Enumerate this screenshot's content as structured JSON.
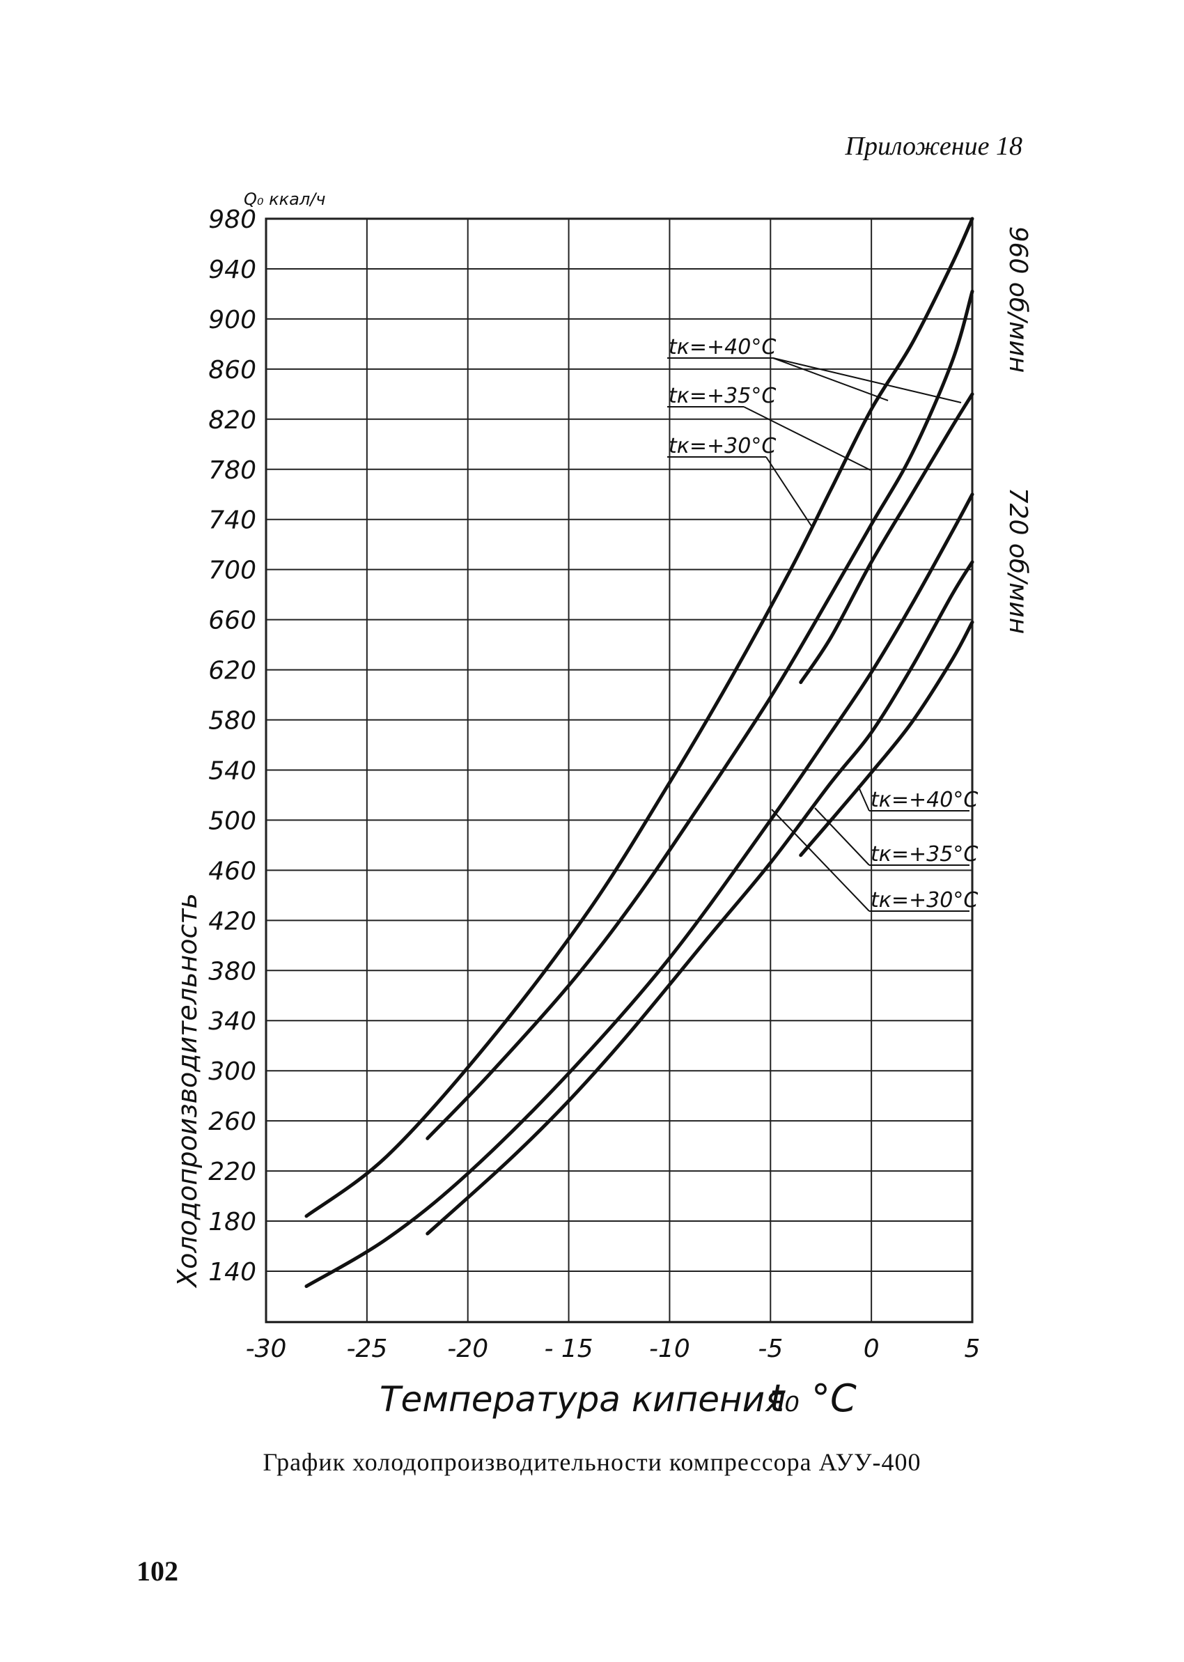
{
  "page": {
    "appendix": "Приложение 18",
    "caption": "График холодопроизводительности компрессора АУУ-400",
    "page_number": "102"
  },
  "chart_data": {
    "type": "line",
    "title": "",
    "xlabel": "Температура кипения",
    "xunit": "t₀ °C",
    "ylabel": "Холодопроизводительность",
    "yunit": "Q₀ ккал/ч",
    "xlim": [
      -30,
      5
    ],
    "ylim": [
      100,
      980
    ],
    "grid": true,
    "x_ticks": [
      -30,
      -25,
      -20,
      -15,
      -10,
      -5,
      0,
      5
    ],
    "x_tick_labels": [
      "-30",
      "-25",
      "-20",
      "- 15",
      "-10",
      "-5",
      "0",
      "5"
    ],
    "y_ticks": [
      140,
      180,
      220,
      260,
      300,
      340,
      380,
      420,
      460,
      500,
      540,
      580,
      620,
      660,
      700,
      740,
      780,
      820,
      860,
      900,
      940,
      980
    ],
    "speed_labels": [
      "960 об/мин",
      "720 об/мин"
    ],
    "series": [
      {
        "group": "960 об/мин",
        "tk_label": "tк=+40°C",
        "x": [
          -28,
          -24,
          -19,
          -14,
          -10,
          -7,
          -4,
          -2,
          0,
          2,
          4,
          5
        ],
        "y": [
          184,
          232,
          322,
          428,
          530,
          612,
          700,
          764,
          828,
          880,
          944,
          980
        ]
      },
      {
        "group": "960 об/мин",
        "tk_label": "tк=+35°C",
        "x": [
          -22,
          -19,
          -15,
          -12,
          -9,
          -5,
          -2,
          0,
          2,
          4,
          5
        ],
        "y": [
          246,
          296,
          368,
          430,
          500,
          598,
          680,
          736,
          792,
          866,
          922
        ]
      },
      {
        "group": "960 об/мин",
        "tk_label": "tк=+30°C",
        "x": [
          -3.5,
          -2,
          0,
          2,
          4,
          5
        ],
        "y": [
          610,
          646,
          706,
          760,
          814,
          840
        ]
      },
      {
        "group": "720 об/мин",
        "tk_label": "tк=+40°C",
        "x": [
          -28,
          -24,
          -20,
          -15,
          -10,
          -5,
          -2,
          0,
          2,
          4,
          5
        ],
        "y": [
          128,
          166,
          218,
          298,
          390,
          500,
          570,
          618,
          672,
          730,
          760
        ]
      },
      {
        "group": "720 об/мин",
        "tk_label": "tк=+35°C",
        "x": [
          -22,
          -18,
          -15,
          -12,
          -8,
          -5,
          -2,
          0,
          2,
          4,
          5
        ],
        "y": [
          170,
          228,
          276,
          330,
          408,
          466,
          530,
          570,
          622,
          680,
          706
        ]
      },
      {
        "group": "720 об/мин",
        "tk_label": "tк=+30°C",
        "x": [
          -3.5,
          -2,
          0,
          2,
          4,
          5
        ],
        "y": [
          472,
          500,
          538,
          578,
          628,
          658
        ]
      }
    ]
  }
}
